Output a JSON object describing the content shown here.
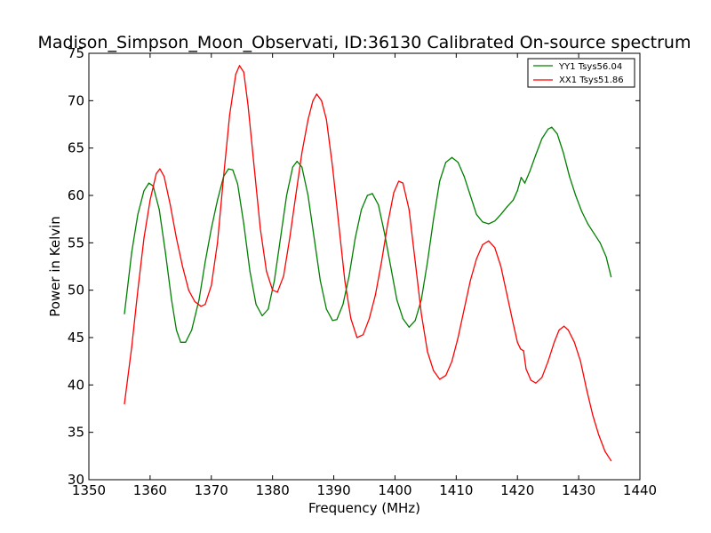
{
  "chart_data": {
    "type": "line",
    "title": "Madison_Simpson_Moon_Observati, ID:36130 Calibrated On-source spectrum",
    "xlabel": "Frequency (MHz)",
    "ylabel": "Power in Kelvin",
    "xlim": [
      1350,
      1440
    ],
    "ylim": [
      30,
      75
    ],
    "xticks": [
      "1350",
      "1360",
      "1370",
      "1380",
      "1390",
      "1400",
      "1410",
      "1420",
      "1430",
      "1440"
    ],
    "yticks": [
      "30",
      "35",
      "40",
      "45",
      "50",
      "55",
      "60",
      "65",
      "70",
      "75"
    ],
    "grid": false,
    "legend_position": "top-right",
    "series": [
      {
        "name": "YY1 Tsys56.04",
        "color": "#008000",
        "points": [
          [
            1355.8,
            47.5
          ],
          [
            1357.0,
            54.0
          ],
          [
            1358.0,
            58.0
          ],
          [
            1359.0,
            60.5
          ],
          [
            1359.8,
            61.3
          ],
          [
            1360.5,
            61.0
          ],
          [
            1361.5,
            58.5
          ],
          [
            1362.5,
            54.0
          ],
          [
            1363.5,
            49.0
          ],
          [
            1364.3,
            45.8
          ],
          [
            1365.0,
            44.5
          ],
          [
            1365.8,
            44.5
          ],
          [
            1366.8,
            45.8
          ],
          [
            1368.0,
            49.0
          ],
          [
            1369.0,
            53.0
          ],
          [
            1370.0,
            56.5
          ],
          [
            1371.0,
            59.5
          ],
          [
            1372.0,
            62.0
          ],
          [
            1372.8,
            62.8
          ],
          [
            1373.5,
            62.7
          ],
          [
            1374.3,
            61.2
          ],
          [
            1375.3,
            57.0
          ],
          [
            1376.3,
            52.0
          ],
          [
            1377.3,
            48.5
          ],
          [
            1378.3,
            47.3
          ],
          [
            1379.3,
            48.0
          ],
          [
            1380.3,
            51.0
          ],
          [
            1381.3,
            55.5
          ],
          [
            1382.3,
            60.0
          ],
          [
            1383.3,
            63.0
          ],
          [
            1384.0,
            63.6
          ],
          [
            1384.8,
            63.0
          ],
          [
            1385.8,
            60.0
          ],
          [
            1386.8,
            55.5
          ],
          [
            1387.8,
            51.0
          ],
          [
            1388.8,
            48.0
          ],
          [
            1389.8,
            46.8
          ],
          [
            1390.5,
            46.9
          ],
          [
            1391.5,
            48.5
          ],
          [
            1392.5,
            51.5
          ],
          [
            1393.5,
            55.5
          ],
          [
            1394.5,
            58.5
          ],
          [
            1395.5,
            60.0
          ],
          [
            1396.3,
            60.2
          ],
          [
            1397.3,
            59.0
          ],
          [
            1398.3,
            56.0
          ],
          [
            1399.3,
            52.5
          ],
          [
            1400.3,
            49.0
          ],
          [
            1401.3,
            47.0
          ],
          [
            1402.3,
            46.1
          ],
          [
            1403.3,
            46.8
          ],
          [
            1404.3,
            49.0
          ],
          [
            1405.3,
            53.0
          ],
          [
            1406.3,
            57.5
          ],
          [
            1407.3,
            61.5
          ],
          [
            1408.3,
            63.5
          ],
          [
            1409.3,
            64.0
          ],
          [
            1410.3,
            63.5
          ],
          [
            1411.3,
            62.0
          ],
          [
            1412.3,
            60.0
          ],
          [
            1413.3,
            58.0
          ],
          [
            1414.3,
            57.2
          ],
          [
            1415.3,
            57.0
          ],
          [
            1416.3,
            57.3
          ],
          [
            1417.3,
            58.0
          ],
          [
            1418.3,
            58.8
          ],
          [
            1419.3,
            59.5
          ],
          [
            1420.0,
            60.5
          ],
          [
            1420.6,
            61.9
          ],
          [
            1421.2,
            61.3
          ],
          [
            1422.0,
            62.5
          ],
          [
            1423.0,
            64.3
          ],
          [
            1424.0,
            66.0
          ],
          [
            1425.0,
            67.0
          ],
          [
            1425.6,
            67.2
          ],
          [
            1426.5,
            66.5
          ],
          [
            1427.5,
            64.5
          ],
          [
            1428.5,
            62.0
          ],
          [
            1429.5,
            60.0
          ],
          [
            1430.5,
            58.3
          ],
          [
            1431.5,
            57.0
          ],
          [
            1432.5,
            56.0
          ],
          [
            1433.5,
            55.0
          ],
          [
            1434.5,
            53.5
          ],
          [
            1435.3,
            51.4
          ]
        ]
      },
      {
        "name": "XX1 Tsys51.86",
        "color": "#ff0000",
        "points": [
          [
            1355.8,
            38.0
          ],
          [
            1357.0,
            44.0
          ],
          [
            1358.0,
            50.0
          ],
          [
            1359.0,
            55.5
          ],
          [
            1360.0,
            59.5
          ],
          [
            1361.0,
            62.3
          ],
          [
            1361.6,
            62.8
          ],
          [
            1362.3,
            62.0
          ],
          [
            1363.3,
            59.0
          ],
          [
            1364.3,
            55.5
          ],
          [
            1365.3,
            52.5
          ],
          [
            1366.3,
            50.0
          ],
          [
            1367.3,
            48.8
          ],
          [
            1368.3,
            48.3
          ],
          [
            1369.0,
            48.5
          ],
          [
            1370.0,
            50.5
          ],
          [
            1371.0,
            55.0
          ],
          [
            1372.0,
            62.0
          ],
          [
            1373.0,
            68.5
          ],
          [
            1374.0,
            72.8
          ],
          [
            1374.6,
            73.7
          ],
          [
            1375.3,
            73.0
          ],
          [
            1376.0,
            69.5
          ],
          [
            1377.0,
            63.0
          ],
          [
            1378.0,
            56.5
          ],
          [
            1379.0,
            52.0
          ],
          [
            1380.0,
            50.0
          ],
          [
            1380.8,
            49.8
          ],
          [
            1381.8,
            51.5
          ],
          [
            1382.8,
            55.5
          ],
          [
            1383.8,
            60.0
          ],
          [
            1384.8,
            64.5
          ],
          [
            1385.8,
            68.0
          ],
          [
            1386.6,
            70.0
          ],
          [
            1387.2,
            70.7
          ],
          [
            1388.0,
            70.0
          ],
          [
            1388.8,
            68.0
          ],
          [
            1389.8,
            63.0
          ],
          [
            1390.8,
            57.0
          ],
          [
            1391.8,
            51.0
          ],
          [
            1392.8,
            47.0
          ],
          [
            1393.8,
            45.0
          ],
          [
            1394.8,
            45.3
          ],
          [
            1395.8,
            47.0
          ],
          [
            1396.8,
            49.5
          ],
          [
            1397.8,
            53.0
          ],
          [
            1398.8,
            57.0
          ],
          [
            1399.8,
            60.3
          ],
          [
            1400.6,
            61.5
          ],
          [
            1401.3,
            61.3
          ],
          [
            1402.3,
            58.5
          ],
          [
            1403.3,
            53.0
          ],
          [
            1404.3,
            47.5
          ],
          [
            1405.3,
            43.5
          ],
          [
            1406.3,
            41.5
          ],
          [
            1407.3,
            40.6
          ],
          [
            1408.3,
            41.0
          ],
          [
            1409.3,
            42.5
          ],
          [
            1410.3,
            45.0
          ],
          [
            1411.3,
            48.0
          ],
          [
            1412.3,
            51.0
          ],
          [
            1413.3,
            53.3
          ],
          [
            1414.3,
            54.8
          ],
          [
            1415.3,
            55.2
          ],
          [
            1416.3,
            54.5
          ],
          [
            1417.3,
            52.5
          ],
          [
            1418.3,
            49.5
          ],
          [
            1419.3,
            46.5
          ],
          [
            1420.0,
            44.5
          ],
          [
            1420.5,
            43.8
          ],
          [
            1421.0,
            43.6
          ],
          [
            1421.4,
            41.7
          ],
          [
            1422.2,
            40.5
          ],
          [
            1423.0,
            40.2
          ],
          [
            1424.0,
            40.8
          ],
          [
            1425.0,
            42.5
          ],
          [
            1426.0,
            44.5
          ],
          [
            1426.8,
            45.8
          ],
          [
            1427.6,
            46.2
          ],
          [
            1428.3,
            45.8
          ],
          [
            1429.3,
            44.5
          ],
          [
            1430.3,
            42.5
          ],
          [
            1431.3,
            39.5
          ],
          [
            1432.3,
            36.8
          ],
          [
            1433.3,
            34.7
          ],
          [
            1434.3,
            33.0
          ],
          [
            1435.3,
            32.0
          ]
        ]
      }
    ]
  }
}
